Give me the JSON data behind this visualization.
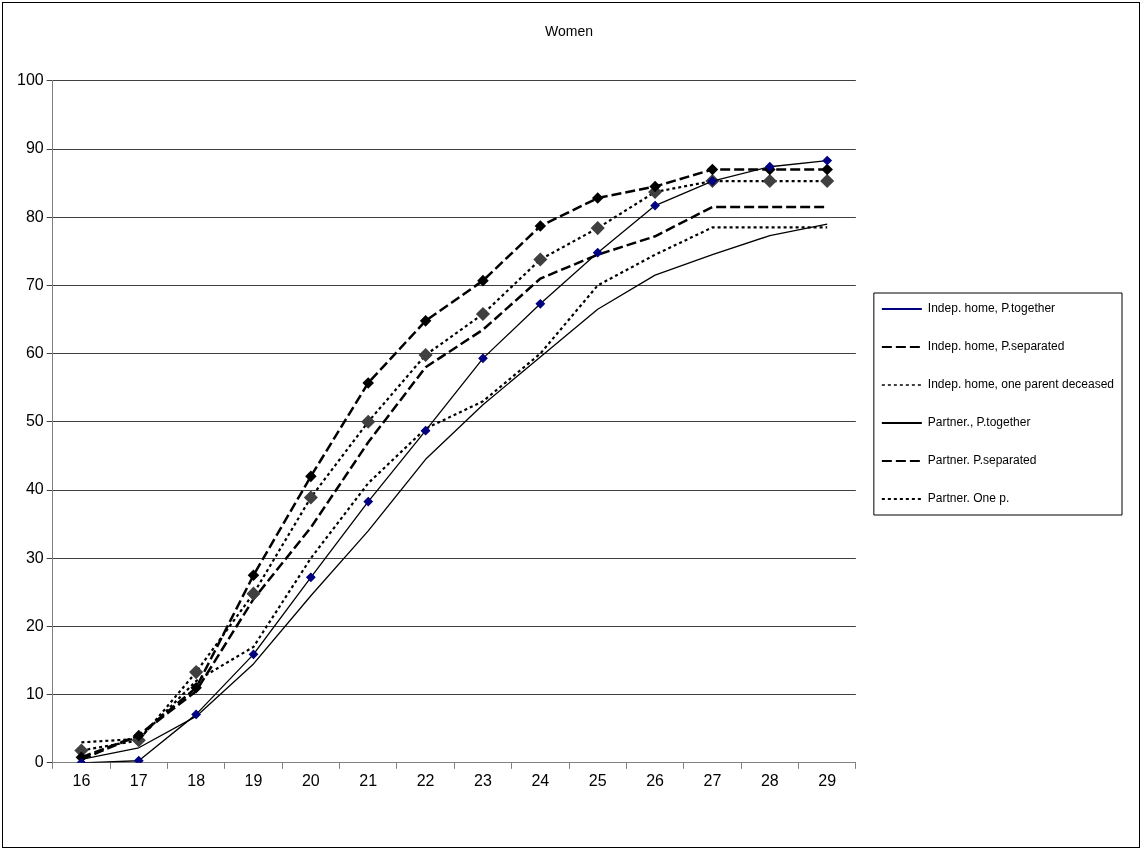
{
  "chart_data": {
    "type": "line",
    "title": "Women",
    "categories": [
      "16",
      "17",
      "18",
      "19",
      "20",
      "21",
      "22",
      "23",
      "24",
      "25",
      "26",
      "27",
      "28",
      "29"
    ],
    "series": [
      {
        "name": "Indep. home, P.together",
        "color": "#000080",
        "line_style": "solid",
        "marker": "diamond",
        "values": [
          0,
          0.3,
          7.1,
          15.9,
          27.2,
          38.3,
          48.7,
          59.3,
          67.3,
          74.8,
          81.7,
          85.3,
          87.4,
          88.3
        ]
      },
      {
        "name": "Indep. home, P.separated",
        "color": "#000000",
        "line_style": "dashed",
        "marker": "diamond",
        "values": [
          0.8,
          4,
          11,
          27.5,
          42,
          55.7,
          64.8,
          70.7,
          78.7,
          82.8,
          84.5,
          87,
          87,
          87
        ]
      },
      {
        "name": "Indep. home, one parent deceased",
        "color": "#404040",
        "line_style": "dotted",
        "marker": "diamond",
        "values": [
          1.8,
          3.3,
          13.3,
          24.8,
          38.9,
          50,
          59.8,
          65.8,
          73.8,
          78.4,
          83.7,
          85.3,
          85.3,
          85.3
        ]
      },
      {
        "name": "Partner., P.together",
        "color": "#000000",
        "line_style": "solid",
        "marker": "none",
        "values": [
          0.5,
          2.2,
          6.8,
          14.5,
          24.5,
          34,
          44.5,
          52.5,
          59.5,
          66.5,
          71.5,
          74.5,
          77.3,
          79
        ]
      },
      {
        "name": "Partner. P.separated",
        "color": "#000000",
        "line_style": "dashed",
        "marker": "none",
        "values": [
          0.5,
          4,
          10.5,
          24,
          34.5,
          47,
          58,
          63.5,
          71,
          74.5,
          77.2,
          81.5,
          81.5,
          81.5
        ]
      },
      {
        "name": "Partner. One p.",
        "color": "#000000",
        "line_style": "dotted",
        "marker": "none",
        "values": [
          3,
          3.5,
          12,
          17,
          30,
          41,
          49,
          53,
          60,
          70,
          74.5,
          78.5,
          78.5,
          78.5
        ]
      }
    ],
    "ylim": [
      0,
      100
    ],
    "yticks": [
      0,
      10,
      20,
      30,
      40,
      50,
      60,
      70,
      80,
      90,
      100
    ],
    "grid": "y",
    "legend": "right"
  }
}
